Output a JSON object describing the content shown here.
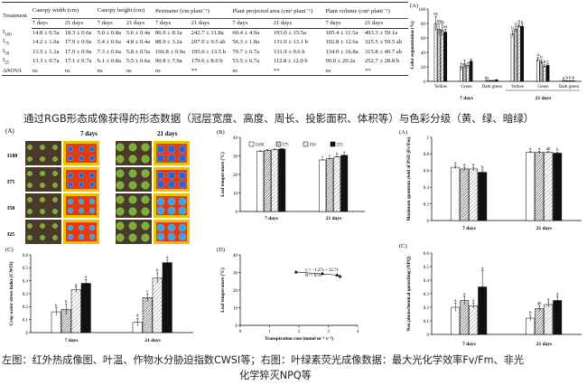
{
  "table": {
    "headers": [
      "Treatment",
      "Canopy width (cm)",
      "Canopy height (cm)",
      "Perimeter (cm plant⁻¹)",
      "Plant projected area (cm² plant⁻¹)",
      "Plant volume (cm³ plant⁻¹)"
    ],
    "subheaders": [
      "7 days",
      "21 days"
    ],
    "rows": [
      {
        "t": "I",
        "sub": "100",
        "v": [
          "14.8 ± 0.5a",
          "18.3 ± 0.6a",
          "5.0 ± 0.8a",
          "5.6 ± 0.4a",
          "86.9 ± 8.1a",
          "242.7 ± 11.8a",
          "60.4 ± 4.9a",
          "193.0 ± 15.5a",
          "105.4 ± 11.5a",
          "493.3 ± 59.1a"
        ]
      },
      {
        "t": "I",
        "sub": "75",
        "v": [
          "14.2 ± 1.0a",
          "17.9 ± 0.9a",
          "5.4 ± 0.6a",
          "4.8 ± 0.4a",
          "88.9 ± 3.2a",
          "207.0 ± 9.5 ab",
          "56.3 ± 1.8a",
          "131.9 ± 13.1 b",
          "102.8 ± 12.6a",
          "325.5 ± 59.5 ab"
        ]
      },
      {
        "t": "I",
        "sub": "50",
        "v": [
          "13.5 ± 1.1a",
          "17.9 ± 0.9a",
          "7.3 ± 0.6a",
          "5.8 ± 0.5a",
          "106.8 ± 9.9a",
          "195.0 ± 13.5 b",
          "70.7 ± 6.7a",
          "131.9 ± 9.6 b",
          "134.0 ± 16.8a",
          "315.8 ± 40.7 ab"
        ]
      },
      {
        "t": "I",
        "sub": "25",
        "v": [
          "13.3 ± 0.7a",
          "17.1 ± 0.7a",
          "6.1 ± 0.8a",
          "5.5 ± 0.6a",
          "90.8 ± 7.9a",
          "179.6 ± 8.0 b",
          "53.5 ± 6.7a",
          "112.8 ± 12.0 b",
          "90.0 ± 20.2a",
          "252.7 ± 28.8 b"
        ]
      },
      {
        "t": "ANOVA",
        "sub": "",
        "v": [
          "ns",
          "ns",
          "ns",
          "ns",
          "ns",
          "**",
          "ns",
          "**",
          "ns",
          "**"
        ]
      }
    ]
  },
  "captions": {
    "top": "通过RGB形态成像获得的形态数据（冠层宽度、高度、周长、投影面积、体积等）与色彩分级（黄、绿、暗绿）",
    "bottom_line1": "左图：红外热成像图、叶温、作物水分胁迫指数CWSI等；右图：叶绿素荧光成像数据：最大光化学效率Fv/Fm、非光",
    "bottom_line2": "化学猝灭NPQ等"
  },
  "thermal_panel": {
    "label": "(A)",
    "col_labels": [
      "7 days",
      "21 days"
    ],
    "row_labels": [
      "I100",
      "I75",
      "I50",
      "I25"
    ]
  },
  "treatments": [
    "I100",
    "I75",
    "I50",
    "I25"
  ],
  "colors": {
    "I100": "#ffffff",
    "I75": "hatch-dense",
    "I50": "hatch-light",
    "I25": "#111111"
  },
  "chart_data": [
    {
      "id": "color-segmentation",
      "type": "bar",
      "panel_label": "(A)",
      "ylabel": "Color segmentation (%)",
      "ylim": [
        0,
        100
      ],
      "yticks": [
        0,
        20,
        40,
        60,
        80,
        100
      ],
      "groups": [
        "7 days",
        "21 days"
      ],
      "categories": [
        "Yellow",
        "Green",
        "Dark green",
        "Yellow",
        "Green",
        "Dark green"
      ],
      "series": [
        {
          "name": "I100",
          "values": [
            80,
            20,
            1,
            66,
            30,
            1
          ],
          "errors": [
            10,
            5,
            0.5,
            4,
            3,
            0.5
          ]
        },
        {
          "name": "I75",
          "values": [
            72,
            24,
            1,
            72,
            27,
            0.5
          ],
          "errors": [
            8,
            5,
            0.5,
            4,
            3,
            0.5
          ]
        },
        {
          "name": "I50",
          "values": [
            71,
            22,
            1,
            77,
            21,
            0.5
          ],
          "errors": [
            8,
            4,
            0.5,
            3,
            2,
            0.5
          ]
        },
        {
          "name": "I25",
          "values": [
            68,
            28,
            2,
            76,
            22,
            0.5
          ],
          "errors": [
            4,
            3,
            0.5,
            3,
            2,
            0.5
          ]
        }
      ],
      "letters": [
        [
          "ns",
          "ns",
          "ns",
          "ns"
        ],
        [
          "",
          "",
          "",
          ""
        ],
        [
          "ns",
          "",
          "",
          ""
        ],
        [
          "b",
          "a",
          "a",
          "a"
        ],
        [
          "a",
          "b",
          "b",
          "c"
        ],
        [
          "a",
          "b",
          "b",
          "b"
        ]
      ]
    },
    {
      "id": "leaf-temperature",
      "type": "bar",
      "panel_label": "(B)",
      "ylabel": "Leaf temperature (°C)",
      "ylim": [
        0,
        40
      ],
      "yticks": [
        0,
        10,
        20,
        30,
        40
      ],
      "categories": [
        "7 days",
        "21 days"
      ],
      "series": [
        {
          "name": "I100",
          "values": [
            32.5,
            27.8
          ],
          "errors": [
            0.3,
            0.2
          ]
        },
        {
          "name": "I75",
          "values": [
            33.0,
            28.6
          ],
          "errors": [
            0.3,
            0.2
          ]
        },
        {
          "name": "I50",
          "values": [
            33.4,
            29.4
          ],
          "errors": [
            0.3,
            0.2
          ]
        },
        {
          "name": "I25",
          "values": [
            33.7,
            30.3
          ],
          "errors": [
            0.3,
            0.2
          ]
        }
      ],
      "letters": [
        [
          "",
          "",
          "",
          ""
        ],
        [
          "c",
          "c",
          "b",
          "a"
        ]
      ]
    },
    {
      "id": "cwsi",
      "type": "bar",
      "panel_label": "(C)",
      "ylabel": "Crop water stress index (CWSI)",
      "ylim": [
        0.0,
        0.6
      ],
      "yticks": [
        0.0,
        0.1,
        0.2,
        0.3,
        0.4,
        0.5,
        0.6
      ],
      "categories": [
        "7 days",
        "21 days"
      ],
      "series": [
        {
          "name": "I100",
          "values": [
            0.16,
            0.08
          ],
          "errors": [
            0.03,
            0.03
          ]
        },
        {
          "name": "I75",
          "values": [
            0.18,
            0.27
          ],
          "errors": [
            0.04,
            0.03
          ]
        },
        {
          "name": "I50",
          "values": [
            0.33,
            0.42
          ],
          "errors": [
            0.02,
            0.04
          ]
        },
        {
          "name": "I25",
          "values": [
            0.38,
            0.54
          ],
          "errors": [
            0.03,
            0.02
          ]
        }
      ],
      "letters": [
        [
          "b",
          "b",
          "a",
          "a"
        ],
        [
          "d",
          "c",
          "b",
          "a"
        ]
      ]
    },
    {
      "id": "leaf-temp-vs-transpiration",
      "type": "scatter",
      "panel_label": "(D)",
      "xlabel": "Transpiration rate (mmol m⁻² s⁻¹)",
      "ylabel": "Leaf temperature (°C)",
      "xlim": [
        0,
        4
      ],
      "ylim": [
        0,
        40
      ],
      "xticks": [
        0,
        1,
        2,
        3,
        4
      ],
      "yticks": [
        0,
        10,
        20,
        30,
        40
      ],
      "points": [
        [
          1.9,
          30.3
        ],
        [
          2.8,
          29.4
        ],
        [
          3.3,
          28.6
        ],
        [
          3.4,
          27.8
        ]
      ],
      "equation": "y = −1.27x + 32.71",
      "r2": "R² = 0.93"
    },
    {
      "id": "fvfm",
      "type": "bar",
      "panel_label": "(A)",
      "ylabel": "Maximum quantum yield of PSII (Fv/Fm)",
      "ylim": [
        0.0,
        1.0
      ],
      "yticks": [
        0.0,
        0.2,
        0.4,
        0.6,
        0.8,
        1.0
      ],
      "categories": [
        "7 days",
        "21 days"
      ],
      "series": [
        {
          "name": "I100",
          "values": [
            0.64,
            0.82
          ],
          "errors": [
            0.02,
            0.01
          ]
        },
        {
          "name": "I75",
          "values": [
            0.62,
            0.82
          ],
          "errors": [
            0.02,
            0.01
          ]
        },
        {
          "name": "I50",
          "values": [
            0.62,
            0.82
          ],
          "errors": [
            0.02,
            0.01
          ]
        },
        {
          "name": "I25",
          "values": [
            0.58,
            0.81
          ],
          "errors": [
            0.03,
            0.01
          ]
        }
      ],
      "letters": [
        [
          "a",
          "a",
          "a",
          "b"
        ],
        [
          "a",
          "a",
          "ab",
          "b"
        ]
      ]
    },
    {
      "id": "npq",
      "type": "bar",
      "panel_label": "(C)",
      "ylabel": "Non photochemical quenching (NPQ)",
      "ylim": [
        0.0,
        0.6
      ],
      "yticks": [
        0.0,
        0.1,
        0.2,
        0.3,
        0.4,
        0.5,
        0.6
      ],
      "categories": [
        "7 days",
        "21 days"
      ],
      "series": [
        {
          "name": "I100",
          "values": [
            0.2,
            0.12
          ],
          "errors": [
            0.03,
            0.02
          ]
        },
        {
          "name": "I75",
          "values": [
            0.25,
            0.19
          ],
          "errors": [
            0.03,
            0.02
          ]
        },
        {
          "name": "I50",
          "values": [
            0.21,
            0.22
          ],
          "errors": [
            0.02,
            0.02
          ]
        },
        {
          "name": "I25",
          "values": [
            0.35,
            0.25
          ],
          "errors": [
            0.12,
            0.03
          ]
        }
      ],
      "letters": [
        [
          "a",
          "a",
          "a",
          "a"
        ],
        [
          "b",
          "ab",
          "a",
          "a"
        ]
      ]
    }
  ]
}
